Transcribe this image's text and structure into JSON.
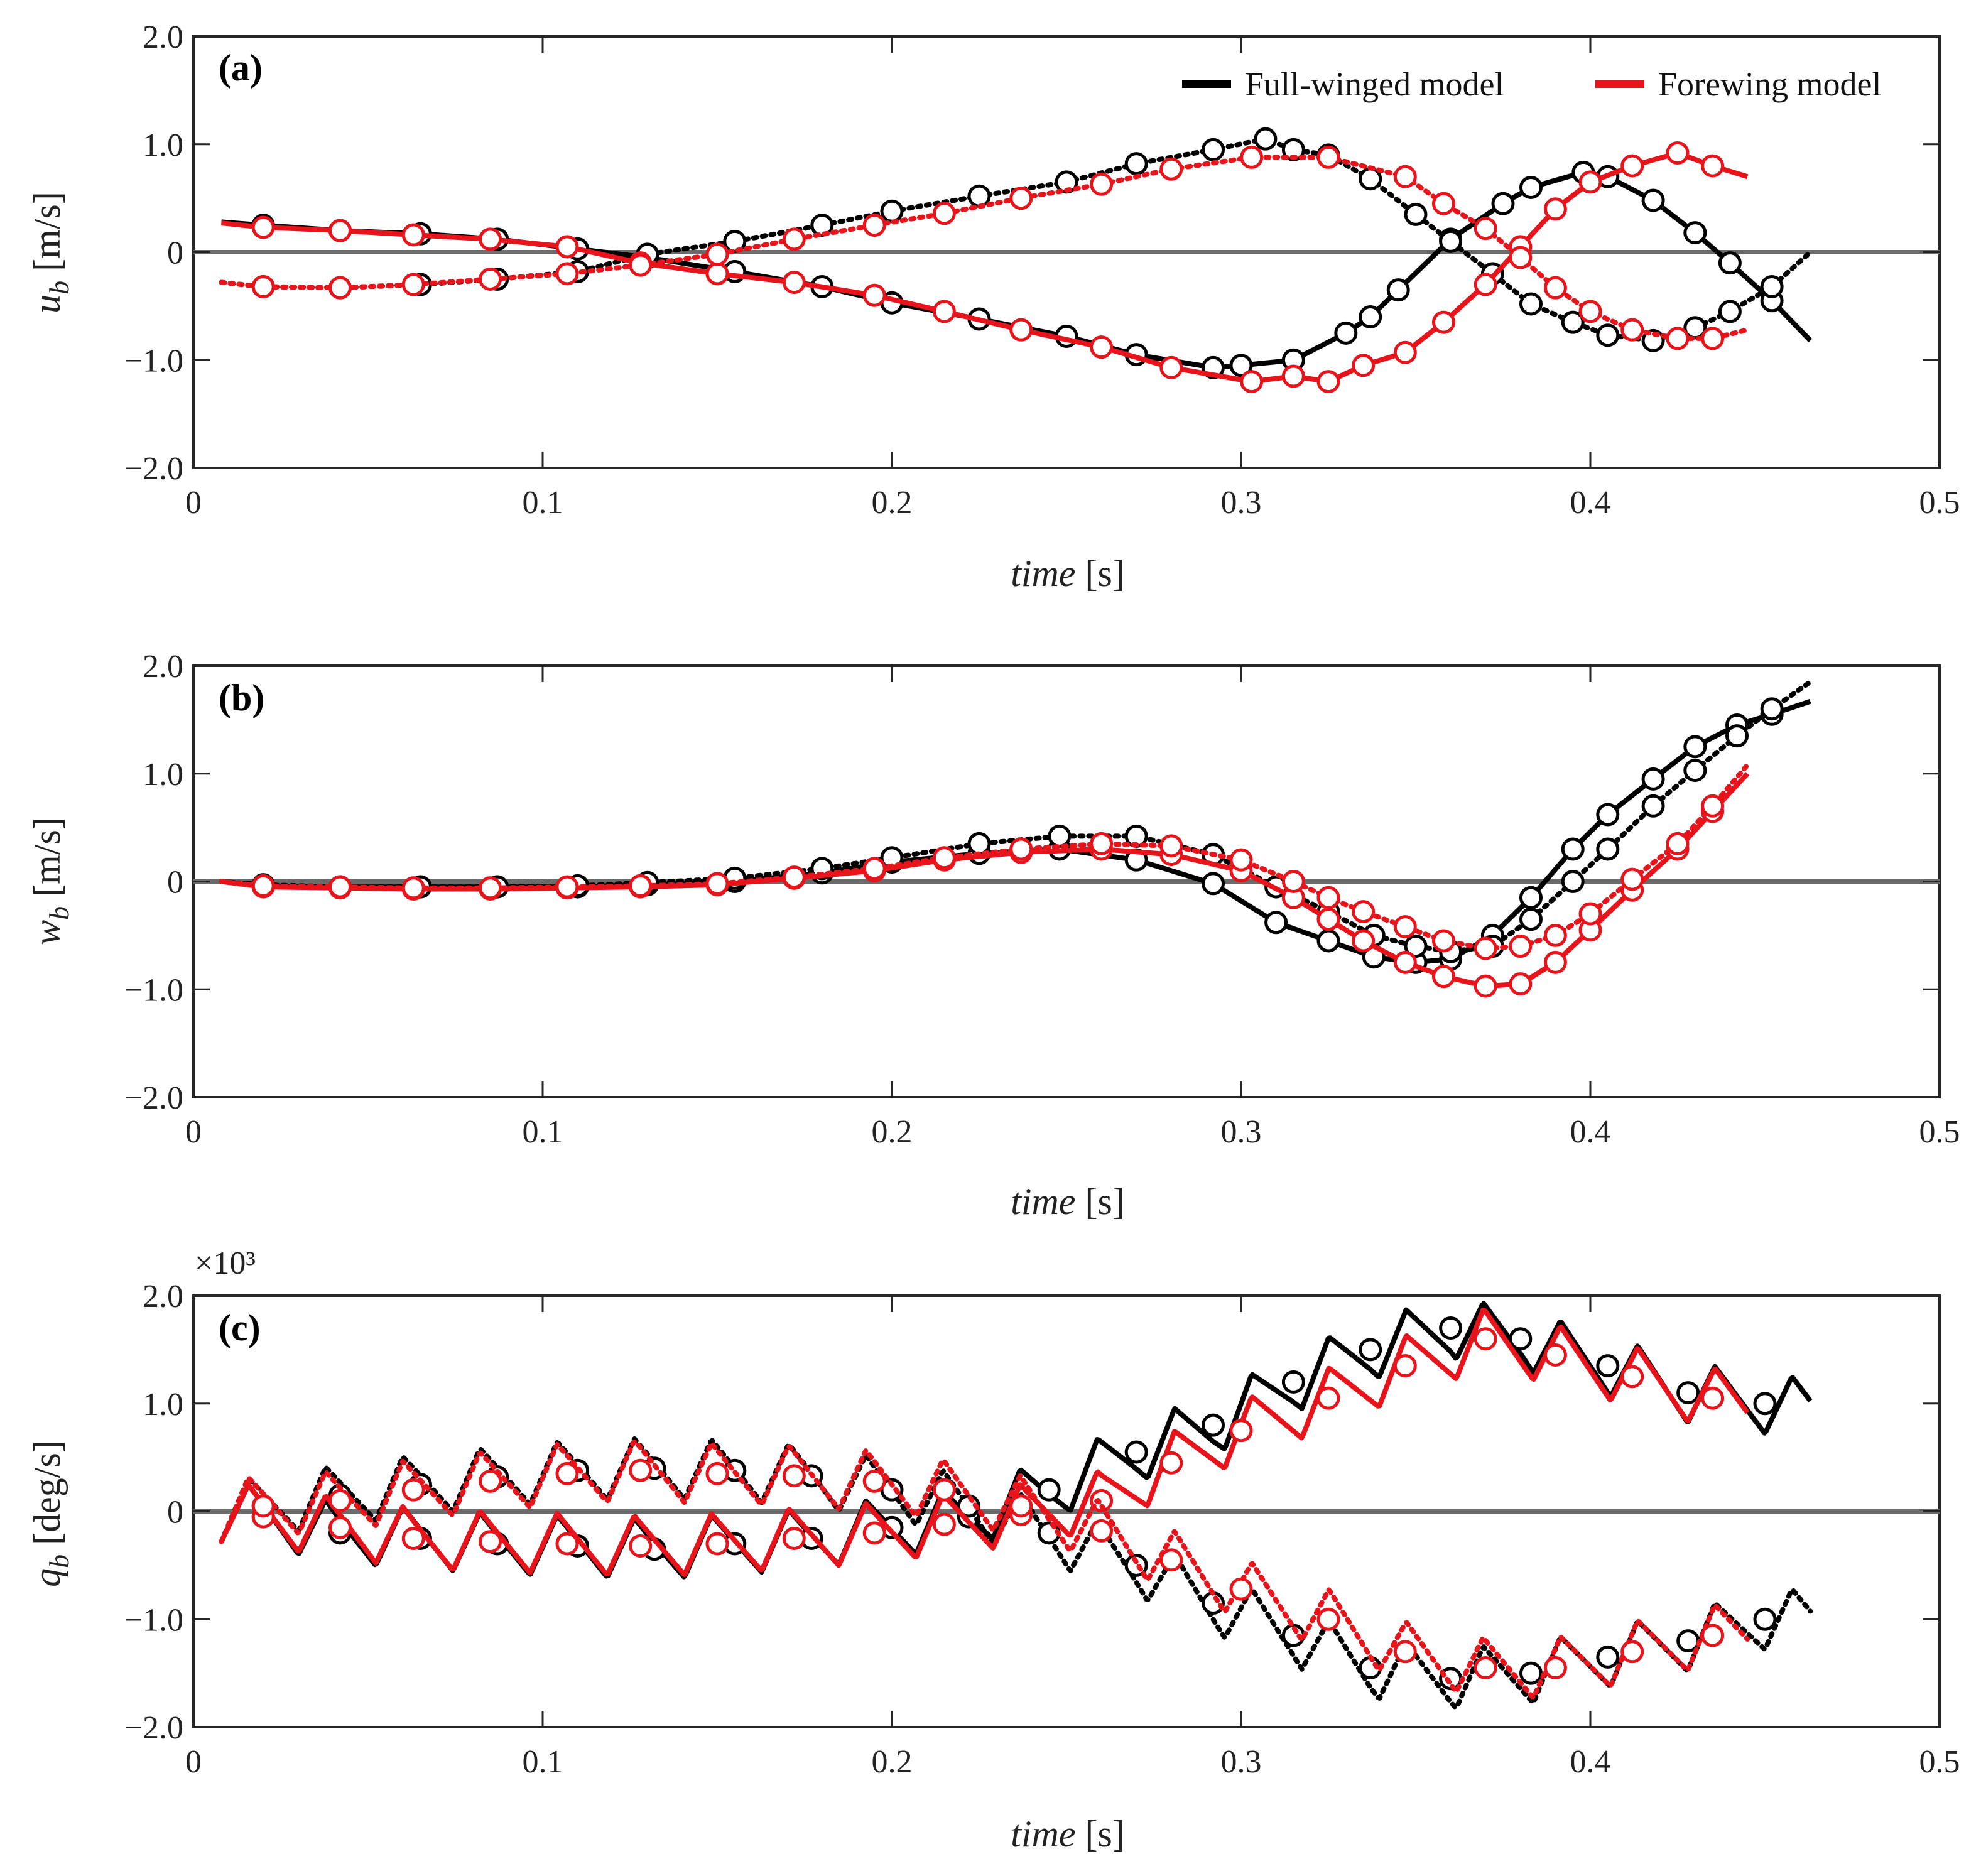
{
  "chart_data": [
    {
      "type": "line",
      "panel_label": "(a)",
      "ylabel_symbol": "u",
      "ylabel_sub": "b",
      "ylabel_unit": "[m/s]",
      "xlabel_var": "time",
      "xlabel_unit": "[s]",
      "xlim": [
        0,
        0.5
      ],
      "ylim": [
        -2.0,
        2.0
      ],
      "x_ticks": [
        0,
        0.1,
        0.2,
        0.3,
        0.4,
        0.5
      ],
      "x_tick_labels": [
        "0",
        "0.1",
        "0.2",
        "0.3",
        "0.4",
        "0.5"
      ],
      "y_ticks": [
        -2.0,
        -1.0,
        0,
        1.0,
        2.0
      ],
      "y_tick_labels": [
        "−2.0",
        "−1.0",
        "0",
        "1.0",
        "2.0"
      ],
      "zero_line": true,
      "legend": {
        "placement": "top-right",
        "entries": [
          {
            "label": "Full-winged model",
            "color": "#000000"
          },
          {
            "label": "Forewing model",
            "color": "#e8141b"
          }
        ]
      },
      "series": [
        {
          "color": "#000000",
          "style": "solid",
          "markers": true,
          "x": [
            0.008,
            0.02,
            0.042,
            0.065,
            0.087,
            0.11,
            0.13,
            0.155,
            0.18,
            0.2,
            0.225,
            0.25,
            0.27,
            0.292,
            0.3,
            0.315,
            0.33,
            0.337,
            0.345,
            0.36,
            0.375,
            0.383,
            0.398,
            0.405,
            0.418,
            0.43,
            0.44,
            0.452,
            0.463
          ],
          "y": [
            0.28,
            0.25,
            0.2,
            0.17,
            0.12,
            0.03,
            -0.05,
            -0.18,
            -0.32,
            -0.47,
            -0.62,
            -0.78,
            -0.95,
            -1.07,
            -1.05,
            -1.0,
            -0.75,
            -0.6,
            -0.35,
            0.12,
            0.45,
            0.6,
            0.74,
            0.7,
            0.48,
            0.18,
            -0.1,
            -0.45,
            -0.82
          ]
        },
        {
          "color": "#000000",
          "style": "dotted",
          "markers": true,
          "x": [
            0.008,
            0.02,
            0.042,
            0.065,
            0.087,
            0.11,
            0.13,
            0.155,
            0.18,
            0.2,
            0.225,
            0.25,
            0.27,
            0.292,
            0.307,
            0.315,
            0.325,
            0.337,
            0.35,
            0.36,
            0.372,
            0.383,
            0.395,
            0.405,
            0.418,
            0.43,
            0.44,
            0.452,
            0.463
          ],
          "y": [
            -0.28,
            -0.32,
            -0.33,
            -0.3,
            -0.25,
            -0.18,
            -0.02,
            0.1,
            0.25,
            0.38,
            0.52,
            0.65,
            0.82,
            0.95,
            1.05,
            0.95,
            0.9,
            0.68,
            0.35,
            0.1,
            -0.2,
            -0.48,
            -0.65,
            -0.77,
            -0.82,
            -0.7,
            -0.55,
            -0.32,
            0.0
          ]
        },
        {
          "color": "#e8141b",
          "style": "solid",
          "markers": true,
          "x": [
            0.008,
            0.02,
            0.042,
            0.063,
            0.085,
            0.107,
            0.128,
            0.15,
            0.172,
            0.195,
            0.215,
            0.237,
            0.26,
            0.28,
            0.303,
            0.315,
            0.325,
            0.335,
            0.347,
            0.358,
            0.37,
            0.38,
            0.39,
            0.4,
            0.412,
            0.425,
            0.435,
            0.445
          ],
          "y": [
            0.27,
            0.23,
            0.2,
            0.16,
            0.12,
            0.05,
            -0.1,
            -0.2,
            -0.28,
            -0.4,
            -0.55,
            -0.72,
            -0.88,
            -1.07,
            -1.2,
            -1.15,
            -1.2,
            -1.05,
            -0.93,
            -0.65,
            -0.3,
            0.05,
            0.4,
            0.65,
            0.8,
            0.92,
            0.8,
            0.7
          ]
        },
        {
          "color": "#e8141b",
          "style": "dotted",
          "markers": true,
          "x": [
            0.008,
            0.02,
            0.042,
            0.063,
            0.085,
            0.107,
            0.128,
            0.15,
            0.172,
            0.195,
            0.215,
            0.237,
            0.26,
            0.28,
            0.303,
            0.325,
            0.347,
            0.358,
            0.37,
            0.38,
            0.39,
            0.4,
            0.412,
            0.425,
            0.435,
            0.445
          ],
          "y": [
            -0.28,
            -0.32,
            -0.33,
            -0.3,
            -0.25,
            -0.2,
            -0.12,
            -0.02,
            0.12,
            0.25,
            0.36,
            0.5,
            0.63,
            0.77,
            0.88,
            0.88,
            0.7,
            0.45,
            0.22,
            -0.05,
            -0.33,
            -0.55,
            -0.72,
            -0.8,
            -0.8,
            -0.72
          ]
        }
      ]
    },
    {
      "type": "line",
      "panel_label": "(b)",
      "ylabel_symbol": "w",
      "ylabel_sub": "b",
      "ylabel_unit": "[m/s]",
      "xlabel_var": "time",
      "xlabel_unit": "[s]",
      "xlim": [
        0,
        0.5
      ],
      "ylim": [
        -2.0,
        2.0
      ],
      "x_ticks": [
        0,
        0.1,
        0.2,
        0.3,
        0.4,
        0.5
      ],
      "x_tick_labels": [
        "0",
        "0.1",
        "0.2",
        "0.3",
        "0.4",
        "0.5"
      ],
      "y_ticks": [
        -2.0,
        -1.0,
        0,
        1.0,
        2.0
      ],
      "y_tick_labels": [
        "−2.0",
        "−1.0",
        "0",
        "1.0",
        "2.0"
      ],
      "zero_line": true,
      "series": [
        {
          "color": "#000000",
          "style": "solid",
          "markers": true,
          "x": [
            0.008,
            0.02,
            0.042,
            0.065,
            0.087,
            0.11,
            0.13,
            0.155,
            0.18,
            0.2,
            0.225,
            0.248,
            0.27,
            0.292,
            0.31,
            0.325,
            0.338,
            0.35,
            0.36,
            0.372,
            0.383,
            0.395,
            0.405,
            0.418,
            0.43,
            0.442,
            0.452,
            0.463
          ],
          "y": [
            0.0,
            -0.04,
            -0.05,
            -0.05,
            -0.05,
            -0.05,
            -0.03,
            0.0,
            0.08,
            0.18,
            0.26,
            0.3,
            0.2,
            -0.02,
            -0.38,
            -0.55,
            -0.7,
            -0.75,
            -0.72,
            -0.5,
            -0.15,
            0.3,
            0.62,
            0.95,
            1.25,
            1.45,
            1.55,
            1.67
          ]
        },
        {
          "color": "#000000",
          "style": "dotted",
          "markers": true,
          "x": [
            0.008,
            0.02,
            0.042,
            0.065,
            0.087,
            0.11,
            0.13,
            0.155,
            0.18,
            0.2,
            0.225,
            0.248,
            0.27,
            0.292,
            0.31,
            0.325,
            0.338,
            0.35,
            0.36,
            0.372,
            0.383,
            0.395,
            0.405,
            0.418,
            0.43,
            0.442,
            0.452,
            0.463
          ],
          "y": [
            0.0,
            -0.03,
            -0.05,
            -0.05,
            -0.05,
            -0.04,
            -0.01,
            0.03,
            0.12,
            0.22,
            0.35,
            0.42,
            0.42,
            0.25,
            -0.05,
            -0.28,
            -0.5,
            -0.6,
            -0.65,
            -0.6,
            -0.35,
            0.0,
            0.3,
            0.7,
            1.03,
            1.35,
            1.6,
            1.85
          ]
        },
        {
          "color": "#e8141b",
          "style": "solid",
          "markers": true,
          "x": [
            0.008,
            0.02,
            0.042,
            0.063,
            0.085,
            0.107,
            0.128,
            0.15,
            0.172,
            0.195,
            0.215,
            0.237,
            0.26,
            0.28,
            0.3,
            0.315,
            0.325,
            0.335,
            0.347,
            0.358,
            0.37,
            0.38,
            0.39,
            0.4,
            0.412,
            0.425,
            0.435,
            0.445
          ],
          "y": [
            0.0,
            -0.05,
            -0.06,
            -0.07,
            -0.07,
            -0.06,
            -0.05,
            -0.03,
            0.03,
            0.1,
            0.2,
            0.27,
            0.3,
            0.25,
            0.1,
            -0.15,
            -0.35,
            -0.55,
            -0.75,
            -0.88,
            -0.97,
            -0.95,
            -0.75,
            -0.45,
            -0.08,
            0.3,
            0.65,
            1.0
          ]
        },
        {
          "color": "#e8141b",
          "style": "dotted",
          "markers": true,
          "x": [
            0.008,
            0.02,
            0.042,
            0.063,
            0.085,
            0.107,
            0.128,
            0.15,
            0.172,
            0.195,
            0.215,
            0.237,
            0.26,
            0.28,
            0.3,
            0.315,
            0.325,
            0.335,
            0.347,
            0.358,
            0.37,
            0.38,
            0.39,
            0.4,
            0.412,
            0.425,
            0.435,
            0.445
          ],
          "y": [
            0.0,
            -0.04,
            -0.05,
            -0.06,
            -0.06,
            -0.05,
            -0.04,
            -0.02,
            0.04,
            0.12,
            0.22,
            0.3,
            0.35,
            0.33,
            0.2,
            0.0,
            -0.15,
            -0.28,
            -0.42,
            -0.55,
            -0.62,
            -0.6,
            -0.5,
            -0.3,
            0.02,
            0.35,
            0.7,
            1.08
          ]
        }
      ]
    },
    {
      "type": "line",
      "panel_label": "(c)",
      "ylabel_symbol": "q",
      "ylabel_sub": "b",
      "ylabel_unit": "[deg/s]",
      "xlabel_var": "time",
      "xlabel_unit": "[s]",
      "xlim": [
        0,
        0.5
      ],
      "ylim": [
        -2.0,
        2.0
      ],
      "multiplier": "×10³",
      "x_ticks": [
        0,
        0.1,
        0.2,
        0.3,
        0.4,
        0.5
      ],
      "x_tick_labels": [
        "0",
        "0.1",
        "0.2",
        "0.3",
        "0.4",
        "0.5"
      ],
      "y_ticks": [
        -2.0,
        -1.0,
        0,
        1.0,
        2.0
      ],
      "y_tick_labels": [
        "−2.0",
        "−1.0",
        "0",
        "1.0",
        "2.0"
      ],
      "zero_line": true,
      "series": [
        {
          "color": "#000000",
          "style": "solid",
          "markers": true,
          "oscillation_period": 0.0221,
          "oscillation_amplitude": 0.28,
          "x": [
            0.008,
            0.02,
            0.042,
            0.065,
            0.087,
            0.11,
            0.132,
            0.155,
            0.177,
            0.2,
            0.222,
            0.245,
            0.27,
            0.292,
            0.315,
            0.337,
            0.36,
            0.38,
            0.405,
            0.428,
            0.45,
            0.463
          ],
          "y": [
            0.0,
            -0.05,
            -0.2,
            -0.25,
            -0.3,
            -0.32,
            -0.35,
            -0.3,
            -0.25,
            -0.15,
            -0.05,
            0.2,
            0.55,
            0.8,
            1.2,
            1.5,
            1.7,
            1.6,
            1.35,
            1.1,
            1.0,
            0.95
          ]
        },
        {
          "color": "#000000",
          "style": "dotted",
          "markers": true,
          "oscillation_period": 0.0221,
          "oscillation_amplitude": 0.28,
          "x": [
            0.008,
            0.02,
            0.042,
            0.065,
            0.087,
            0.11,
            0.132,
            0.155,
            0.177,
            0.2,
            0.222,
            0.245,
            0.27,
            0.292,
            0.315,
            0.337,
            0.36,
            0.383,
            0.405,
            0.428,
            0.45,
            0.463
          ],
          "y": [
            0.0,
            0.05,
            0.15,
            0.25,
            0.32,
            0.38,
            0.4,
            0.38,
            0.33,
            0.2,
            0.05,
            -0.2,
            -0.5,
            -0.85,
            -1.15,
            -1.45,
            -1.55,
            -1.5,
            -1.35,
            -1.2,
            -1.0,
            -1.0
          ]
        },
        {
          "color": "#e8141b",
          "style": "solid",
          "markers": true,
          "oscillation_period": 0.0221,
          "oscillation_amplitude": 0.28,
          "x": [
            0.008,
            0.02,
            0.042,
            0.063,
            0.085,
            0.107,
            0.128,
            0.15,
            0.172,
            0.195,
            0.215,
            0.237,
            0.26,
            0.28,
            0.3,
            0.325,
            0.347,
            0.37,
            0.39,
            0.412,
            0.435,
            0.445
          ],
          "y": [
            0.0,
            -0.05,
            -0.15,
            -0.25,
            -0.28,
            -0.3,
            -0.32,
            -0.3,
            -0.25,
            -0.2,
            -0.12,
            -0.03,
            0.1,
            0.45,
            0.75,
            1.05,
            1.35,
            1.6,
            1.45,
            1.25,
            1.05,
            1.0
          ]
        },
        {
          "color": "#e8141b",
          "style": "dotted",
          "markers": true,
          "oscillation_period": 0.0221,
          "oscillation_amplitude": 0.28,
          "x": [
            0.008,
            0.02,
            0.042,
            0.063,
            0.085,
            0.107,
            0.128,
            0.15,
            0.172,
            0.195,
            0.215,
            0.237,
            0.26,
            0.28,
            0.3,
            0.325,
            0.347,
            0.37,
            0.39,
            0.412,
            0.435,
            0.445
          ],
          "y": [
            0.0,
            0.05,
            0.1,
            0.2,
            0.28,
            0.35,
            0.38,
            0.35,
            0.33,
            0.28,
            0.2,
            0.05,
            -0.18,
            -0.45,
            -0.72,
            -1.0,
            -1.3,
            -1.45,
            -1.45,
            -1.3,
            -1.15,
            -1.1
          ]
        }
      ]
    }
  ]
}
